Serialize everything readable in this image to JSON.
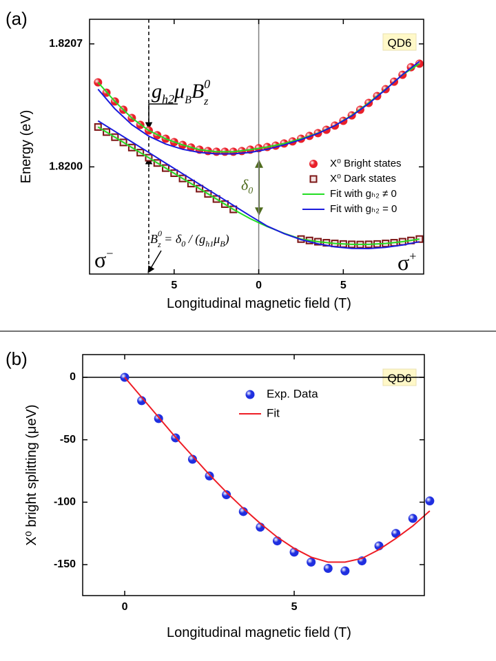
{
  "chart_data": [
    {
      "type": "scatter",
      "panel_label": "(a)",
      "tag": "QD6",
      "x_label": "Longitudinal magnetic field (T)",
      "y_label": "Energy (eV)",
      "xlim": [
        -10,
        9.75
      ],
      "ylim": [
        1.81939,
        1.82084
      ],
      "xticks": [
        {
          "value": -5,
          "label": "5"
        },
        0,
        5
      ],
      "yticks": [
        {
          "value": 1.82,
          "label": "1.8200"
        },
        {
          "value": 1.8207,
          "label": "1.8207"
        }
      ],
      "grid": false,
      "reference_lines": [
        {
          "axis": "x",
          "value": 0,
          "color": "#808080",
          "style": "solid"
        },
        {
          "axis": "x",
          "value": -6.5,
          "color": "#000000",
          "style": "dashed"
        }
      ],
      "annotations": [
        [
          "g",
          "h2",
          "μ",
          "B",
          "B",
          "0",
          "z"
        ],
        [
          "δ",
          "0"
        ],
        [
          "B",
          "0",
          "z",
          " = δ",
          "0",
          " / (g",
          "h1",
          "μ",
          "B",
          ")"
        ],
        [
          "σ",
          "−"
        ],
        [
          "σ",
          "+"
        ]
      ],
      "legend": "center right",
      "series": [
        {
          "name": "X⁰ Bright states",
          "color": "#e8202a",
          "marker": "circle",
          "x": [
            -9.5,
            -9,
            -8.5,
            -8,
            -7.5,
            -7,
            -6.5,
            -6,
            -5.5,
            -5,
            -4.5,
            -4,
            -3.5,
            -3,
            -2.5,
            -2,
            -1.5,
            -1,
            -0.5,
            0,
            0.5,
            1,
            1.5,
            2,
            2.5,
            3,
            3.5,
            4,
            4.5,
            5,
            5.5,
            6,
            6.5,
            7,
            7.5,
            8,
            8.5,
            9,
            9.5
          ],
          "values": [
            1.820481,
            1.820422,
            1.820372,
            1.820325,
            1.820278,
            1.820239,
            1.820207,
            1.82018,
            1.82016,
            1.820141,
            1.820125,
            1.82011,
            1.820098,
            1.82009,
            1.820086,
            1.820086,
            1.820086,
            1.82009,
            1.820098,
            1.820106,
            1.820113,
            1.820121,
            1.820133,
            1.820145,
            1.82016,
            1.820176,
            1.820192,
            1.820211,
            1.820235,
            1.820262,
            1.820293,
            1.820325,
            1.820364,
            1.820403,
            1.820442,
            1.820485,
            1.820524,
            1.820567,
            1.820587
          ]
        },
        {
          "name": "X⁰ Dark states",
          "color": "#7b1414",
          "marker": "square",
          "x": [
            -9.5,
            -9,
            -8.5,
            -8,
            -7.5,
            -7,
            -6.5,
            -6,
            -5.5,
            -5,
            -4.5,
            -4,
            -3.5,
            -3,
            -2.5,
            -2,
            -1.5,
            2.5,
            3,
            3.5,
            4,
            4.5,
            5,
            5.5,
            6,
            6.5,
            7,
            7.5,
            8,
            8.5,
            9,
            9.5
          ],
          "values": [
            1.820227,
            1.820198,
            1.820169,
            1.820139,
            1.82011,
            1.820081,
            1.820052,
            1.820022,
            1.819993,
            1.819964,
            1.819934,
            1.819905,
            1.819876,
            1.819846,
            1.819817,
            1.819788,
            1.819758,
            1.819589,
            1.819581,
            1.819574,
            1.819568,
            1.819564,
            1.819561,
            1.819559,
            1.819558,
            1.819559,
            1.819561,
            1.819564,
            1.819568,
            1.819574,
            1.819581,
            1.819589
          ]
        },
        {
          "name": "Fit with gₕ₂ ≠ 0",
          "color": "#22dd22",
          "marker": "line",
          "curves": [
            {
              "x": [
                -9.5,
                -8.5,
                -7.5,
                -6.5,
                -5.5,
                -4.5,
                -3.5,
                -2.5,
                -1.5,
                -0.5,
                0.5,
                1.5,
                2.5,
                3.5,
                4.5,
                5.5,
                6.5,
                7.5,
                8.5,
                9.5
              ],
              "values": [
                1.820481,
                1.820372,
                1.820278,
                1.820207,
                1.82016,
                1.820125,
                1.820098,
                1.820086,
                1.820086,
                1.820098,
                1.820113,
                1.820133,
                1.82016,
                1.820192,
                1.820235,
                1.820293,
                1.820364,
                1.820442,
                1.820524,
                1.820587
              ]
            },
            {
              "x": [
                -9.5,
                -8.5,
                -7.5,
                -6.5,
                -5.5,
                -4.5,
                -3.5,
                -2.5,
                -1.5,
                -0.5,
                0.5,
                1.5,
                2.5,
                3.5,
                4.5,
                5.5,
                6.5,
                7.5,
                8.5,
                9.5
              ],
              "values": [
                1.820227,
                1.820169,
                1.82011,
                1.820052,
                1.819993,
                1.819934,
                1.819876,
                1.819817,
                1.819758,
                1.819705,
                1.81966,
                1.819622,
                1.819589,
                1.819574,
                1.819564,
                1.819559,
                1.819559,
                1.819564,
                1.819574,
                1.819589
              ]
            }
          ]
        },
        {
          "name": "Fit with gₕ₂ = 0",
          "color": "#1a1adc",
          "marker": "line",
          "curves": [
            {
              "x": [
                -9.5,
                -8.5,
                -7.5,
                -6.5,
                -5.5,
                -4.5,
                -3.5,
                -2.5,
                -1.5,
                -0.5,
                0.5,
                1.5,
                2.5,
                3.5,
                4.5,
                5.5,
                6.5,
                7.5,
                8.5,
                9.5
              ],
              "values": [
                1.820442,
                1.82033,
                1.82024,
                1.820175,
                1.82013,
                1.8201,
                1.820082,
                1.820074,
                1.820074,
                1.820082,
                1.8201,
                1.820125,
                1.820155,
                1.82019,
                1.820235,
                1.82029,
                1.82036,
                1.82044,
                1.820525,
                1.8206
              ]
            },
            {
              "x": [
                -9.5,
                -8.5,
                -7.5,
                -6.5,
                -5.5,
                -4.5,
                -3.5,
                -2.5,
                -1.5,
                -0.5,
                0.5,
                1.5,
                2.5,
                3.5,
                4.5,
                5.5,
                6.5,
                7.5,
                8.5,
                9.5
              ],
              "values": [
                1.820262,
                1.820202,
                1.820142,
                1.820082,
                1.820021,
                1.819961,
                1.819901,
                1.819841,
                1.819781,
                1.819721,
                1.819663,
                1.81962,
                1.819586,
                1.819562,
                1.819545,
                1.819536,
                1.819535,
                1.819542,
                1.819555,
                1.819574
              ]
            }
          ]
        }
      ]
    },
    {
      "type": "scatter",
      "panel_label": "(b)",
      "tag": "QD6",
      "x_label": "Longitudinal magnetic field (T)",
      "y_label": "X⁰ bright splitting (μeV)",
      "xlim": [
        -1.24,
        8.84
      ],
      "ylim": [
        -174.8,
        18.2
      ],
      "xticks": [
        0,
        5
      ],
      "yticks": [
        0,
        -50,
        -100,
        -150
      ],
      "grid": false,
      "reference_lines": [
        {
          "axis": "y",
          "value": 0,
          "color": "#000000",
          "style": "solid"
        }
      ],
      "legend": "upper center",
      "series": [
        {
          "name": "Exp. Data",
          "color": "#1f2fe0",
          "marker": "circle",
          "x": [
            0,
            0.5,
            1,
            1.5,
            2,
            2.5,
            3,
            3.5,
            4,
            4.5,
            5,
            5.5,
            6,
            6.5,
            7,
            7.5,
            8,
            8.5,
            9
          ],
          "values": [
            0,
            -18.7,
            -33,
            -48.5,
            -65.6,
            -79,
            -94,
            -107.5,
            -120,
            -131,
            -140,
            -148,
            -153,
            -155,
            -147,
            -135,
            -125,
            -113,
            -99
          ]
        },
        {
          "name": "Fit",
          "color": "#ee1c24",
          "marker": "line",
          "curves": [
            {
              "x": [
                0,
                0.5,
                1,
                1.5,
                2,
                2.5,
                3,
                3.5,
                4,
                4.5,
                5,
                5.5,
                6,
                6.5,
                7,
                7.5,
                8,
                8.5,
                9
              ],
              "values": [
                0,
                -16,
                -32,
                -48,
                -63,
                -78,
                -92,
                -105,
                -117,
                -128,
                -137,
                -144,
                -148,
                -148,
                -145,
                -138,
                -129,
                -119,
                -107
              ]
            }
          ]
        }
      ]
    }
  ]
}
